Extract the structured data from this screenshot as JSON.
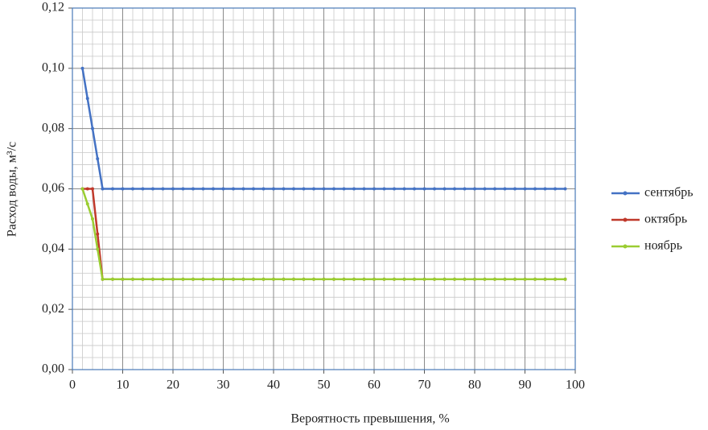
{
  "chart_data": {
    "type": "line",
    "x_label": "Вероятность превышения, %",
    "y_label": "Расход воды, м³/с",
    "x": [
      2,
      3,
      4,
      5,
      6,
      8,
      10,
      12,
      14,
      16,
      18,
      20,
      22,
      24,
      26,
      28,
      30,
      32,
      34,
      36,
      38,
      40,
      42,
      44,
      46,
      48,
      50,
      52,
      54,
      56,
      58,
      60,
      62,
      64,
      66,
      68,
      70,
      72,
      74,
      76,
      78,
      80,
      82,
      84,
      86,
      88,
      90,
      92,
      94,
      96,
      98
    ],
    "series": [
      {
        "name": "сентябрь",
        "color": "#4472c4",
        "values": [
          0.1,
          0.09,
          0.08,
          0.07,
          0.06,
          0.06,
          0.06,
          0.06,
          0.06,
          0.06,
          0.06,
          0.06,
          0.06,
          0.06,
          0.06,
          0.06,
          0.06,
          0.06,
          0.06,
          0.06,
          0.06,
          0.06,
          0.06,
          0.06,
          0.06,
          0.06,
          0.06,
          0.06,
          0.06,
          0.06,
          0.06,
          0.06,
          0.06,
          0.06,
          0.06,
          0.06,
          0.06,
          0.06,
          0.06,
          0.06,
          0.06,
          0.06,
          0.06,
          0.06,
          0.06,
          0.06,
          0.06,
          0.06,
          0.06,
          0.06,
          0.06
        ]
      },
      {
        "name": "октябрь",
        "color": "#c0392b",
        "values": [
          0.06,
          0.06,
          0.06,
          0.045,
          0.03,
          0.03,
          0.03,
          0.03,
          0.03,
          0.03,
          0.03,
          0.03,
          0.03,
          0.03,
          0.03,
          0.03,
          0.03,
          0.03,
          0.03,
          0.03,
          0.03,
          0.03,
          0.03,
          0.03,
          0.03,
          0.03,
          0.03,
          0.03,
          0.03,
          0.03,
          0.03,
          0.03,
          0.03,
          0.03,
          0.03,
          0.03,
          0.03,
          0.03,
          0.03,
          0.03,
          0.03,
          0.03,
          0.03,
          0.03,
          0.03,
          0.03,
          0.03,
          0.03,
          0.03,
          0.03,
          0.03
        ]
      },
      {
        "name": "ноябрь",
        "color": "#9acd32",
        "values": [
          0.06,
          0.055,
          0.05,
          0.04,
          0.03,
          0.03,
          0.03,
          0.03,
          0.03,
          0.03,
          0.03,
          0.03,
          0.03,
          0.03,
          0.03,
          0.03,
          0.03,
          0.03,
          0.03,
          0.03,
          0.03,
          0.03,
          0.03,
          0.03,
          0.03,
          0.03,
          0.03,
          0.03,
          0.03,
          0.03,
          0.03,
          0.03,
          0.03,
          0.03,
          0.03,
          0.03,
          0.03,
          0.03,
          0.03,
          0.03,
          0.03,
          0.03,
          0.03,
          0.03,
          0.03,
          0.03,
          0.03,
          0.03,
          0.03,
          0.03,
          0.03
        ]
      }
    ],
    "xlim": [
      0,
      100
    ],
    "xticks": [
      0,
      10,
      20,
      30,
      40,
      50,
      60,
      70,
      80,
      90,
      100
    ],
    "ylim": [
      0,
      0.12
    ],
    "yticks": [
      {
        "value": 0,
        "label": "0,00"
      },
      {
        "value": 0.02,
        "label": "0,02"
      },
      {
        "value": 0.04,
        "label": "0,04"
      },
      {
        "value": 0.06,
        "label": "0,06"
      },
      {
        "value": 0.08,
        "label": "0,08"
      },
      {
        "value": 0.1,
        "label": "0,10"
      },
      {
        "value": 0.12,
        "label": "0,12"
      }
    ],
    "grid": true,
    "legend": "right"
  }
}
